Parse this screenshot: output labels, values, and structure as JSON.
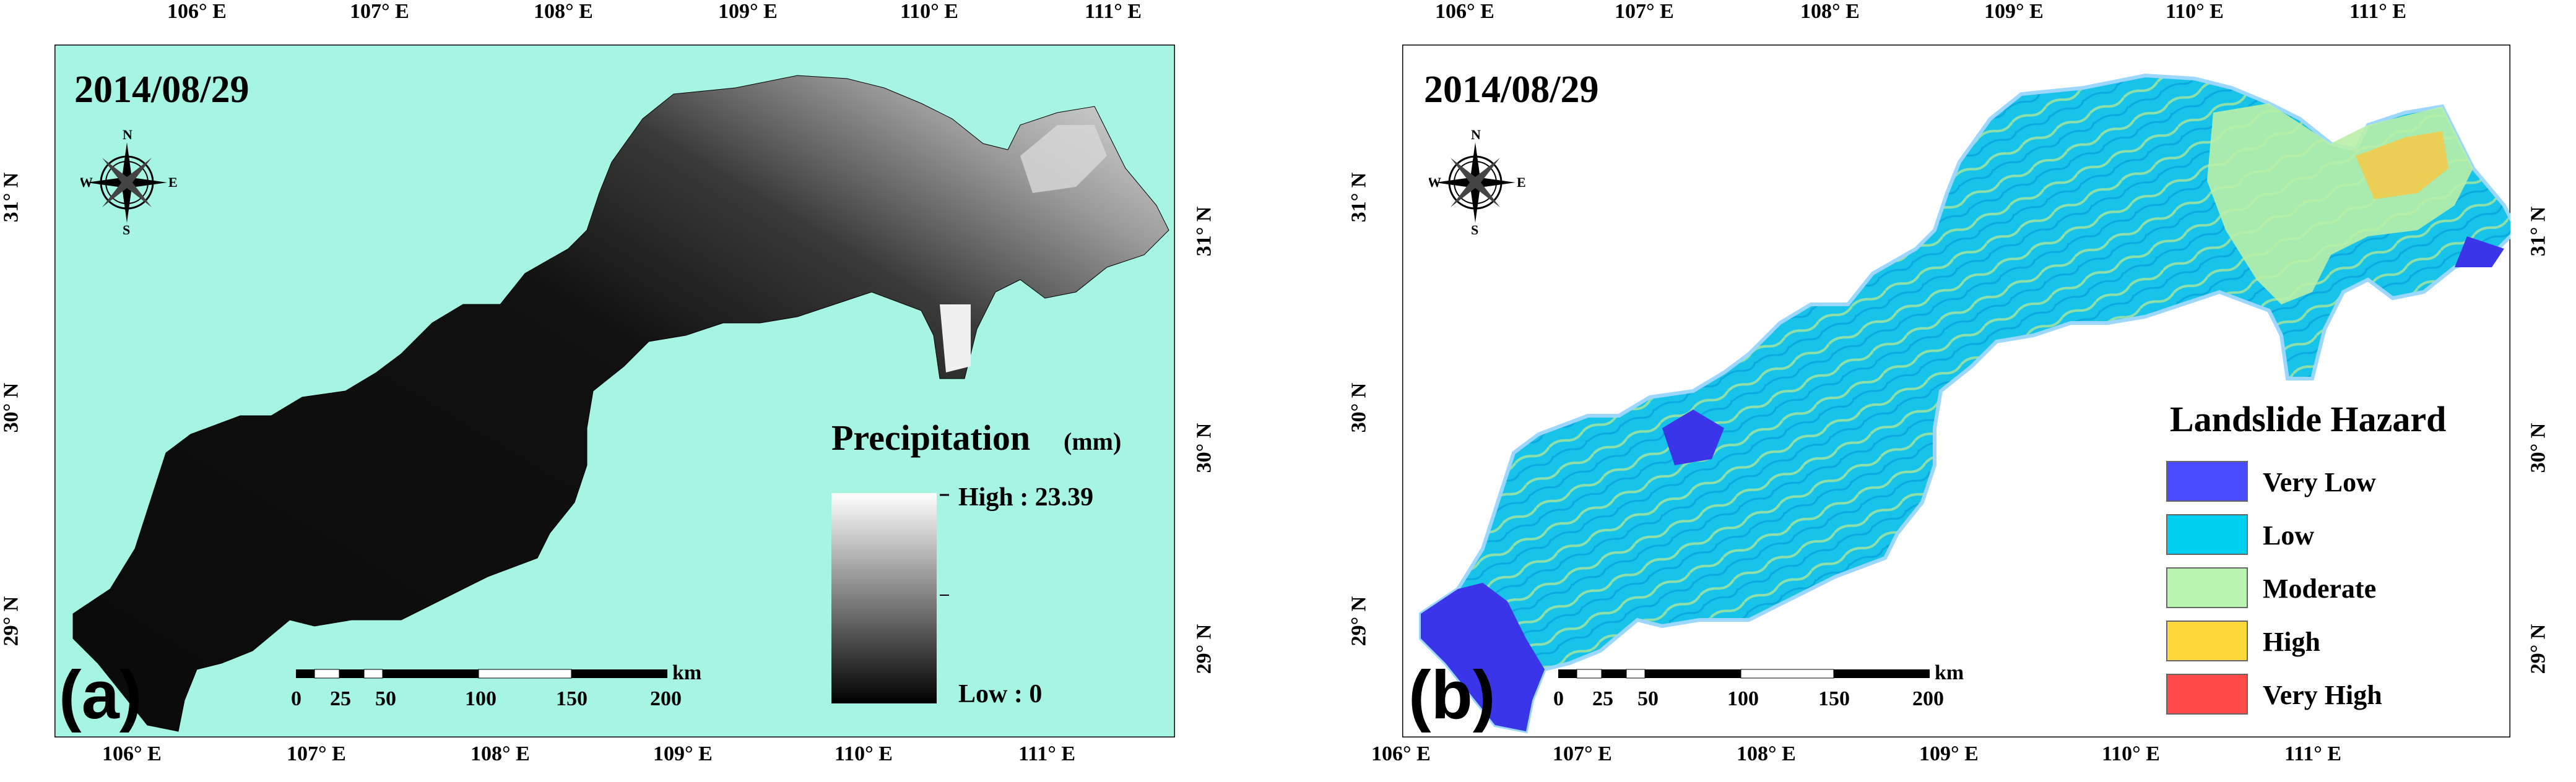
{
  "figure": {
    "panels": [
      {
        "id": "a",
        "date": "2014/08/29",
        "letter": "(a)",
        "colors": {
          "background": "#a6f5e3",
          "border": "#000000"
        },
        "legend": {
          "title": "Precipitation",
          "unit": "(mm)",
          "high_label": "High : 23.39",
          "low_label": "Low : 0",
          "high_value": 23.39,
          "low_value": 0
        }
      },
      {
        "id": "b",
        "date": "2014/08/29",
        "letter": "(b)",
        "colors": {
          "background": "#ffffff",
          "border": "#000000"
        },
        "legend": {
          "title": "Landslide Hazard",
          "classes": [
            {
              "label": "Very Low",
              "color": "#4a4aff"
            },
            {
              "label": "Low",
              "color": "#00d0f0"
            },
            {
              "label": "Moderate",
              "color": "#b9f5b1"
            },
            {
              "label": "High",
              "color": "#ffd93b"
            },
            {
              "label": "Very High",
              "color": "#ff4a4a"
            }
          ]
        }
      }
    ],
    "axes": {
      "lon_labels": [
        "106° E",
        "107° E",
        "108° E",
        "109° E",
        "110° E",
        "111° E"
      ],
      "lat_labels": [
        "31° N",
        "30° N",
        "29° N"
      ]
    },
    "compass": {
      "n": "N",
      "s": "S",
      "e": "E",
      "w": "W"
    },
    "scale_bar": {
      "unit": "km",
      "ticks": [
        "0",
        "25",
        "50",
        "100",
        "150",
        "200"
      ]
    }
  }
}
